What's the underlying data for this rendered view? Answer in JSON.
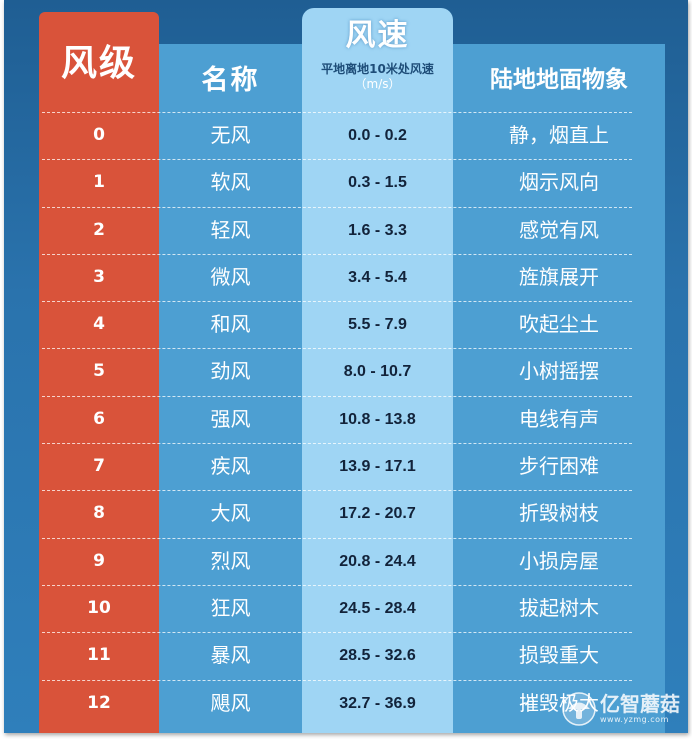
{
  "header": {
    "level": "风级",
    "name": "名称",
    "speed_title": "风速",
    "speed_subtitle": "平地离地10米处风速",
    "speed_unit": "（m/s）",
    "phenomenon": "陆地地面物象"
  },
  "rows": [
    {
      "level": "0",
      "name": "无风",
      "speed": "0.0 - 0.2",
      "phenomenon": "静，烟直上"
    },
    {
      "level": "1",
      "name": "软风",
      "speed": "0.3 - 1.5",
      "phenomenon": "烟示风向"
    },
    {
      "level": "2",
      "name": "轻风",
      "speed": "1.6 - 3.3",
      "phenomenon": "感觉有风"
    },
    {
      "level": "3",
      "name": "微风",
      "speed": "3.4 - 5.4",
      "phenomenon": "旌旗展开"
    },
    {
      "level": "4",
      "name": "和风",
      "speed": "5.5 - 7.9",
      "phenomenon": "吹起尘土"
    },
    {
      "level": "5",
      "name": "劲风",
      "speed": "8.0 - 10.7",
      "phenomenon": "小树摇摆"
    },
    {
      "level": "6",
      "name": "强风",
      "speed": "10.8 - 13.8",
      "phenomenon": "电线有声"
    },
    {
      "level": "7",
      "name": "疾风",
      "speed": "13.9 - 17.1",
      "phenomenon": "步行困难"
    },
    {
      "level": "8",
      "name": "大风",
      "speed": "17.2 - 20.7",
      "phenomenon": "折毁树枝"
    },
    {
      "level": "9",
      "name": "烈风",
      "speed": "20.8 - 24.4",
      "phenomenon": "小损房屋"
    },
    {
      "level": "10",
      "name": "狂风",
      "speed": "24.5 - 28.4",
      "phenomenon": "拔起树木"
    },
    {
      "level": "11",
      "name": "暴风",
      "speed": "28.5 - 32.6",
      "phenomenon": "损毁重大"
    },
    {
      "level": "12",
      "name": "飓风",
      "speed": "32.7 - 36.9",
      "phenomenon": "摧毁极大"
    }
  ],
  "watermark": {
    "brand": "亿智蘑菇",
    "url": "www.yzmg.com"
  },
  "colors": {
    "background": "#2a73ad",
    "level_column": "#d9533a",
    "name_column": "#4d9fd2",
    "speed_column": "#9fd5f4",
    "phenomenon_column": "#4d9fd2"
  },
  "icons": {
    "watermark_logo": "mushroom-logo-icon"
  }
}
